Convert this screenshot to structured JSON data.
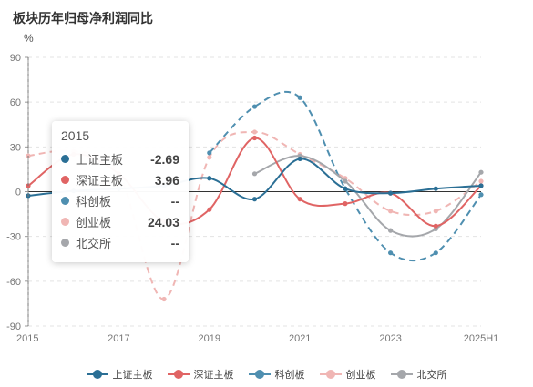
{
  "title": "板块历年归母净利润同比",
  "unit": "%",
  "colors": {
    "上证主板": "#2b6f95",
    "深证主板": "#e06464",
    "科创板": "#4f8fb0",
    "创业板": "#f0b6b4",
    "北交所": "#a5a7ab"
  },
  "tooltip": {
    "header": "2015",
    "rows": [
      {
        "name": "上证主板",
        "value": "-2.69",
        "color": "#2b6f95"
      },
      {
        "name": "深证主板",
        "value": "3.96",
        "color": "#e06464"
      },
      {
        "name": "科创板",
        "value": "--",
        "color": "#4f8fb0"
      },
      {
        "name": "创业板",
        "value": "24.03",
        "color": "#f0b6b4"
      },
      {
        "name": "北交所",
        "value": "--",
        "color": "#a5a7ab"
      }
    ]
  },
  "legend": [
    "上证主板",
    "深证主板",
    "科创板",
    "创业板",
    "北交所"
  ],
  "chart_data": {
    "type": "line",
    "title": "板块历年归母净利润同比",
    "ylabel": "%",
    "x": [
      "2015",
      "2016",
      "2017",
      "2018",
      "2019",
      "2020",
      "2021",
      "2022",
      "2023",
      "2024",
      "2025H1"
    ],
    "xtick_labels": [
      "2015",
      "2017",
      "2019",
      "2021",
      "2023",
      "2025H1"
    ],
    "ylim": [
      -90,
      90
    ],
    "yticks": [
      -90,
      -60,
      -30,
      0,
      30,
      60,
      90
    ],
    "grid": true,
    "legend_position": "bottom",
    "series": [
      {
        "name": "上证主板",
        "style": "solid",
        "values": [
          -2.69,
          0.5,
          2,
          4,
          9,
          -5,
          22,
          2,
          -1,
          2,
          4
        ]
      },
      {
        "name": "深证主板",
        "style": "solid",
        "values": [
          3.96,
          25,
          12,
          -20,
          -12,
          36,
          -5,
          -8,
          -1,
          -23,
          4
        ]
      },
      {
        "name": "科创板",
        "style": "dashed",
        "values": [
          null,
          null,
          null,
          null,
          26,
          57,
          63,
          2,
          -41,
          -41,
          -2
        ]
      },
      {
        "name": "创业板",
        "style": "dashed",
        "values": [
          24.03,
          27,
          12,
          -72,
          23,
          40,
          25,
          9,
          -13,
          -13,
          7
        ]
      },
      {
        "name": "北交所",
        "style": "solid",
        "values": [
          null,
          null,
          null,
          null,
          null,
          12,
          24,
          7,
          -26,
          -25,
          13
        ]
      }
    ]
  }
}
